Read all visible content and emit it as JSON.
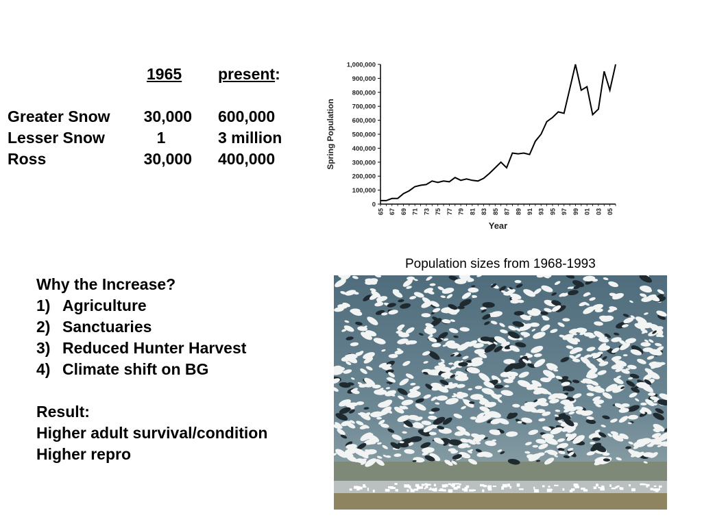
{
  "table": {
    "header_1965": "1965",
    "header_present": "present",
    "header_colon": ":",
    "rows": [
      {
        "species": "Greater Snow",
        "y1965": "30,000",
        "present": "600,000"
      },
      {
        "species": "Lesser Snow",
        "y1965": "1",
        "present": "3 million"
      },
      {
        "species": "Ross",
        "y1965": "30,000",
        "present": "400,000"
      }
    ]
  },
  "chart_data": {
    "type": "line",
    "xlabel": "Year",
    "ylabel": "Spring Population",
    "ylim": [
      0,
      1000000
    ],
    "y_ticks": [
      0,
      100000,
      200000,
      300000,
      400000,
      500000,
      600000,
      700000,
      800000,
      900000,
      1000000
    ],
    "y_tick_labels": [
      "0",
      "100,000",
      "200,000",
      "300,000",
      "400,000",
      "500,000",
      "600,000",
      "700,000",
      "800,000",
      "900,000",
      "1,000,000"
    ],
    "x_ticks": [
      1965,
      1967,
      1969,
      1971,
      1973,
      1975,
      1977,
      1979,
      1981,
      1983,
      1985,
      1987,
      1989,
      1991,
      1993,
      1995,
      1997,
      1999,
      2001,
      2003,
      2005
    ],
    "x_tick_labels": [
      "65",
      "67",
      "69",
      "71",
      "73",
      "75",
      "77",
      "79",
      "81",
      "83",
      "85",
      "87",
      "89",
      "91",
      "93",
      "95",
      "97",
      "99",
      "01",
      "03",
      "05"
    ],
    "x": [
      1965,
      1966,
      1967,
      1968,
      1969,
      1970,
      1971,
      1972,
      1973,
      1974,
      1975,
      1976,
      1977,
      1978,
      1979,
      1980,
      1981,
      1982,
      1983,
      1984,
      1985,
      1986,
      1987,
      1988,
      1989,
      1990,
      1991,
      1992,
      1993,
      1994,
      1995,
      1996,
      1997,
      1998,
      1999,
      2000,
      2001,
      2002,
      2003,
      2004,
      2005,
      2006
    ],
    "series": [
      {
        "values": [
          25000,
          25000,
          40000,
          40000,
          75000,
          95000,
          125000,
          135000,
          140000,
          165000,
          155000,
          165000,
          160000,
          190000,
          170000,
          180000,
          170000,
          165000,
          185000,
          220000,
          260000,
          300000,
          260000,
          365000,
          360000,
          365000,
          355000,
          450000,
          500000,
          590000,
          620000,
          660000,
          650000,
          825000,
          1000000,
          815000,
          840000,
          640000,
          680000,
          950000,
          815000,
          1000000
        ]
      }
    ],
    "grid": false,
    "line_color": "#000000"
  },
  "caption": "Population sizes from 1968-1993",
  "reasons": {
    "title": "Why the Increase?",
    "items": [
      {
        "num": "1)",
        "text": "Agriculture"
      },
      {
        "num": "2)",
        "text": "Sanctuaries"
      },
      {
        "num": "3)",
        "text": "Reduced Hunter Harvest"
      },
      {
        "num": "4)",
        "text": "Climate shift on BG"
      }
    ],
    "result_title": "Result:",
    "result_lines": [
      "Higher adult survival/condition",
      "Higher repro"
    ]
  }
}
